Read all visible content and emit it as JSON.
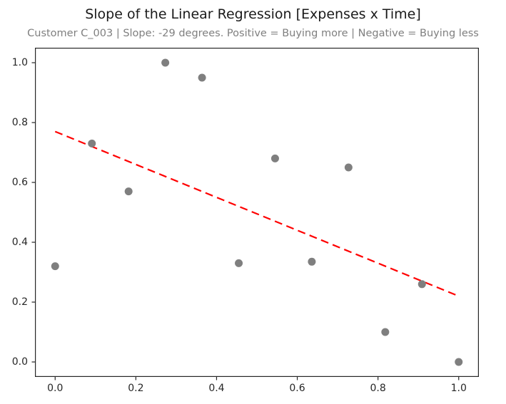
{
  "chart_data": {
    "type": "scatter",
    "title": "Slope of the Linear Regression [Expenses x Time]",
    "subtitle": "Customer C_003 | Slope: -29 degrees. Positive = Buying more | Negative = Buying less",
    "customer_id": "C_003",
    "slope_degrees": -29,
    "xlabel": "",
    "ylabel": "",
    "xlim": [
      -0.05,
      1.05
    ],
    "ylim": [
      -0.05,
      1.05
    ],
    "grid": false,
    "legend_position": "none",
    "x_ticks": [
      0.0,
      0.2,
      0.4,
      0.6,
      0.8,
      1.0
    ],
    "x_tick_labels": [
      "0.0",
      "0.2",
      "0.4",
      "0.6",
      "0.8",
      "1.0"
    ],
    "y_ticks": [
      0.0,
      0.2,
      0.4,
      0.6,
      0.8,
      1.0
    ],
    "y_tick_labels": [
      "0.0",
      "0.2",
      "0.4",
      "0.6",
      "0.8",
      "1.0"
    ],
    "points": [
      {
        "x": 0.0,
        "y": 0.32
      },
      {
        "x": 0.091,
        "y": 0.73
      },
      {
        "x": 0.182,
        "y": 0.57
      },
      {
        "x": 0.273,
        "y": 1.0
      },
      {
        "x": 0.364,
        "y": 0.95
      },
      {
        "x": 0.455,
        "y": 0.33
      },
      {
        "x": 0.545,
        "y": 0.68
      },
      {
        "x": 0.636,
        "y": 0.335
      },
      {
        "x": 0.727,
        "y": 0.65
      },
      {
        "x": 0.818,
        "y": 0.1
      },
      {
        "x": 0.909,
        "y": 0.26
      },
      {
        "x": 1.0,
        "y": 0.0
      }
    ],
    "regression_line": {
      "x1": 0.0,
      "y1": 0.77,
      "x2": 1.0,
      "y2": 0.22,
      "style": "dashed"
    },
    "colors": {
      "marker": "#7f7f7f",
      "regression_line": "#ff0000",
      "frame": "#262626",
      "tick_label": "#262626",
      "title": "#1a1a1a",
      "subtitle": "#7f7f7f",
      "background": "#ffffff"
    }
  }
}
